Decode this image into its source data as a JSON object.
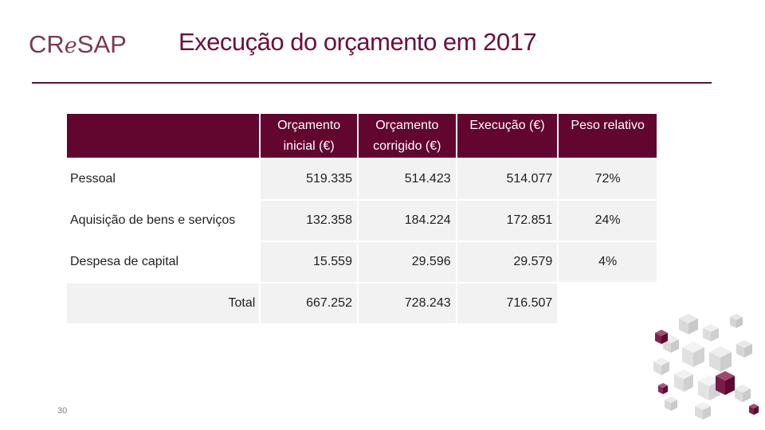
{
  "logo": {
    "text_pre": "CR",
    "text_e": "e",
    "text_post": "SAP"
  },
  "title": "Execução do orçamento em 2017",
  "table": {
    "headers": [
      "",
      "Orçamento inicial (€)",
      "Orçamento corrigido (€)",
      "Execução (€)",
      "Peso relativo"
    ],
    "rows": [
      {
        "label": "Pessoal",
        "inicial": "519.335",
        "corrigido": "514.423",
        "execucao": "514.077",
        "peso": "72%"
      },
      {
        "label": "Aquisição de bens e serviços",
        "inicial": "132.358",
        "corrigido": "184.224",
        "execucao": "172.851",
        "peso": "24%"
      },
      {
        "label": "Despesa de capital",
        "inicial": "15.559",
        "corrigido": "29.596",
        "execucao": "29.579",
        "peso": "4%"
      }
    ],
    "total": {
      "label": "Total",
      "inicial": "667.252",
      "corrigido": "728.243",
      "execucao": "716.507",
      "peso": ""
    }
  },
  "page_number": "30",
  "colors": {
    "header_bg": "#62052f",
    "title": "#6b0f3c",
    "rule": "#5e1236",
    "cell_bg": "#f2f2f2"
  }
}
